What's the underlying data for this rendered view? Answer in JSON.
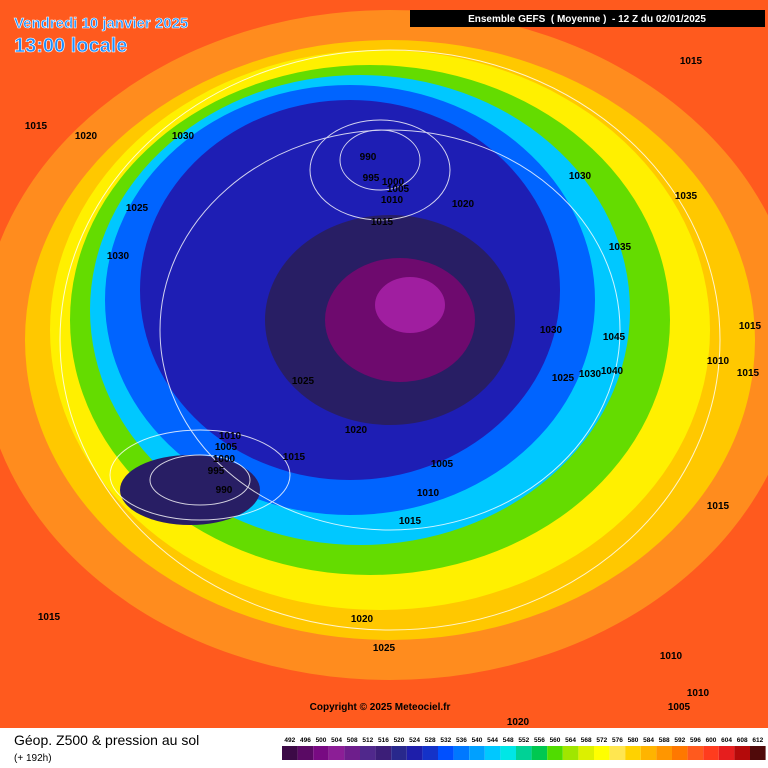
{
  "header": {
    "date": "Vendredi 10 janvier 2025",
    "time": "13:00 locale",
    "model": "Ensemble GEFS  ( Moyenne )  - 12 Z du 02/01/2025"
  },
  "isobar_labels": [
    1015,
    1020,
    1030,
    1025,
    1030,
    990,
    995,
    1000,
    1005,
    1010,
    1015,
    1020,
    1030,
    1035,
    1015,
    1035,
    1030,
    1045,
    1025,
    1030,
    1040,
    1015,
    1010,
    1015,
    1025,
    1020,
    1010,
    1005,
    1000,
    995,
    990,
    1015,
    1005,
    1010,
    1015,
    1015,
    1015,
    1020,
    1025,
    1010,
    1010,
    1005,
    1020
  ],
  "copyright": "Copyright © 2025 Meteociel.fr",
  "legend": {
    "title": "Géop. Z500 & pression au sol",
    "lead": "(+ 192h)",
    "scale": [
      492,
      496,
      500,
      504,
      508,
      512,
      516,
      520,
      524,
      528,
      532,
      536,
      540,
      544,
      548,
      552,
      556,
      560,
      564,
      568,
      572,
      576,
      580,
      584,
      588,
      592,
      596,
      600,
      604,
      608,
      612
    ],
    "colors": [
      "#3c0a46",
      "#5a0a64",
      "#780a82",
      "#8c1e96",
      "#6e1e8c",
      "#50288c",
      "#3c1e78",
      "#28288c",
      "#1e1eaa",
      "#1432c8",
      "#0050ff",
      "#0078ff",
      "#00a0ff",
      "#00c8ff",
      "#00e6e6",
      "#00d296",
      "#00c850",
      "#50dc00",
      "#a0e600",
      "#dcf000",
      "#ffff00",
      "#ffe650",
      "#ffd200",
      "#ffb400",
      "#ff9600",
      "#ff7800",
      "#ff5a1e",
      "#ff3c1e",
      "#e61e1e",
      "#b40a0a",
      "#500a0a"
    ]
  }
}
